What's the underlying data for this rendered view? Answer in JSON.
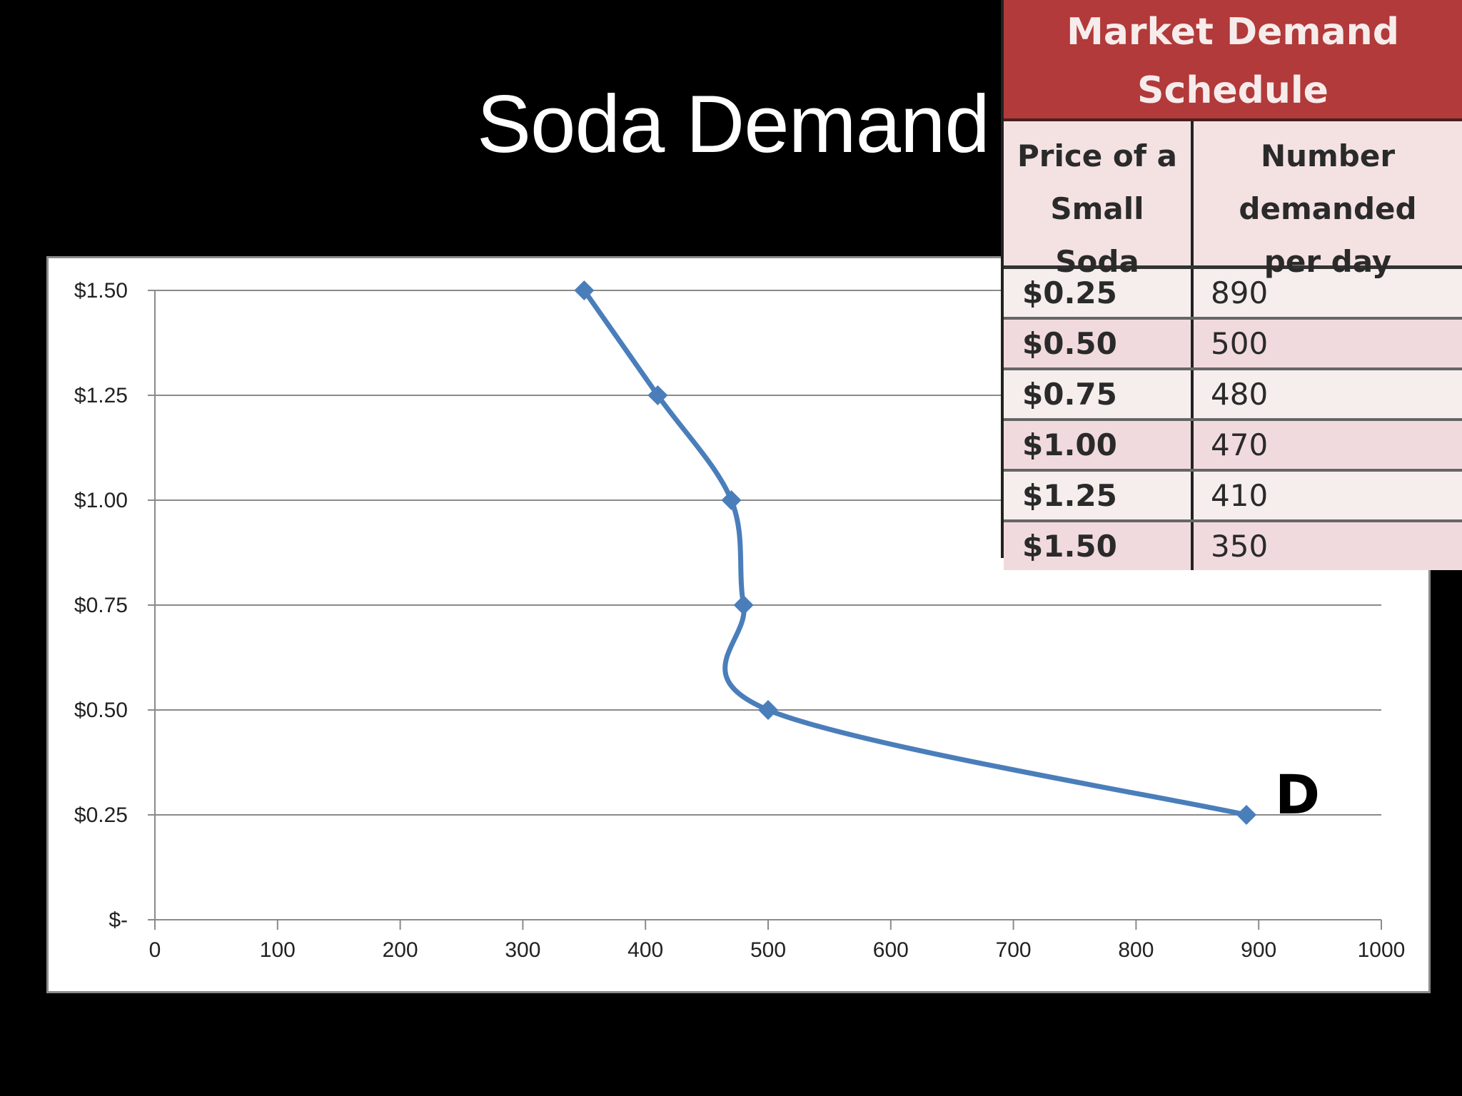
{
  "slide": {
    "title": "Soda Demand",
    "background": "#000000"
  },
  "schedule": {
    "title_line1": "Market Demand",
    "title_line2": "Schedule",
    "header_price": [
      "Price of a",
      "Small",
      "Soda"
    ],
    "header_qty": [
      "Number",
      "demanded",
      "per day"
    ],
    "rows": [
      {
        "price": "$0.25",
        "qty": "890"
      },
      {
        "price": "$0.50",
        "qty": "500"
      },
      {
        "price": "$0.75",
        "qty": "480"
      },
      {
        "price": "$1.00",
        "qty": "470"
      },
      {
        "price": "$1.25",
        "qty": "410"
      },
      {
        "price": "$1.50",
        "qty": "350"
      }
    ],
    "colors": {
      "header": "#b23a3a",
      "row_light": "#f6eded",
      "row_dark": "#f1dadd"
    }
  },
  "chart_data": {
    "type": "line",
    "title": "Soda Demand",
    "xlabel": "",
    "ylabel": "",
    "x": [
      890,
      500,
      480,
      470,
      410,
      350
    ],
    "series": [
      {
        "name": "D",
        "values": [
          0.25,
          0.5,
          0.75,
          1.0,
          1.25,
          1.5
        ],
        "color": "#4a7ebb",
        "marker": "diamond",
        "smooth": true
      }
    ],
    "xlim": [
      0,
      1000
    ],
    "ylim": [
      0,
      1.5
    ],
    "xticks": [
      "0",
      "100",
      "200",
      "300",
      "400",
      "500",
      "600",
      "700",
      "800",
      "900",
      "1000"
    ],
    "yticks": [
      "$-",
      "$0.25",
      "$0.50",
      "$0.75",
      "$1.00",
      "$1.25",
      "$1.50"
    ],
    "grid": "horizontal",
    "annotations": [
      {
        "text": "D",
        "x": 890,
        "y": 0.25
      }
    ],
    "legend": "none"
  }
}
